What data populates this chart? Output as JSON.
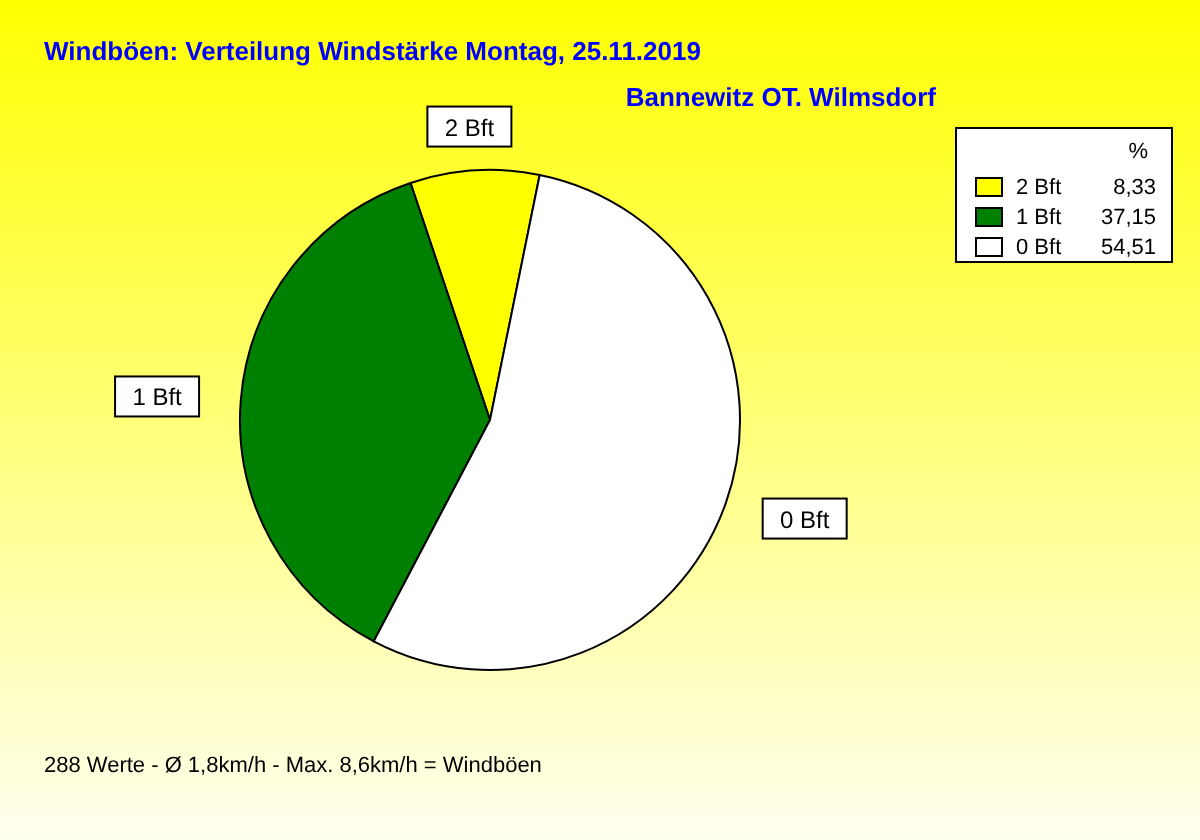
{
  "chart_data": {
    "type": "pie",
    "title": "Windböen: Verteilung Windstärke  Montag, 25.11.2019",
    "subtitle": "Bannewitz OT. Wilmsdorf",
    "categories": [
      "2 Bft",
      "1 Bft",
      "0 Bft"
    ],
    "values": [
      8.33,
      37.15,
      54.51
    ],
    "value_labels": [
      "8,33",
      "37,15",
      "54,51"
    ],
    "colors": [
      "#ffff00",
      "#008000",
      "#ffffff"
    ],
    "legend": "top right",
    "legend_title": "%",
    "annotations": [
      "288 Werte   -   Ø 1,8km/h  -  Max. 8,6km/h = Windböen"
    ]
  }
}
